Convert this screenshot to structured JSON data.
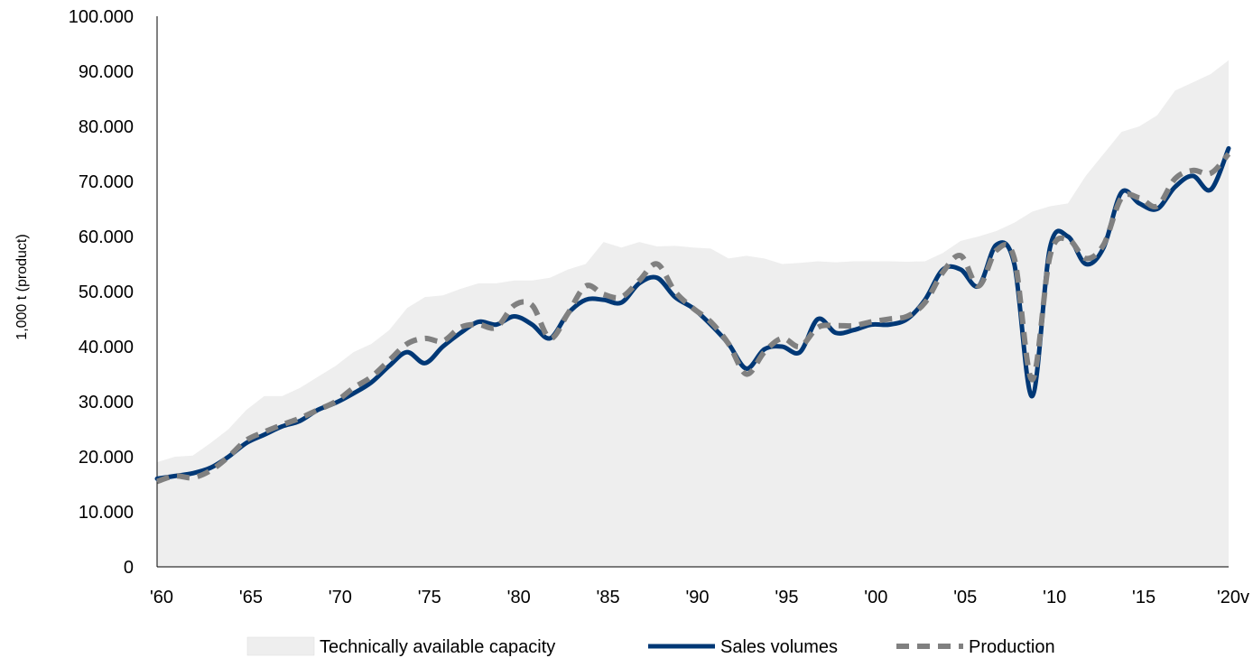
{
  "chart_data": {
    "type": "line",
    "title": "",
    "xlabel": "",
    "ylabel": "1,000 t (product)",
    "ylim": [
      0,
      100000
    ],
    "y_ticks": [
      {
        "value": 0,
        "label": "0"
      },
      {
        "value": 10000,
        "label": "10.000"
      },
      {
        "value": 20000,
        "label": "20.000"
      },
      {
        "value": 30000,
        "label": "30.000"
      },
      {
        "value": 40000,
        "label": "40.000"
      },
      {
        "value": 50000,
        "label": "50.000"
      },
      {
        "value": 60000,
        "label": "60.000"
      },
      {
        "value": 70000,
        "label": "70.000"
      },
      {
        "value": 80000,
        "label": "80.000"
      },
      {
        "value": 90000,
        "label": "90.000"
      },
      {
        "value": 100000,
        "label": "100.000"
      }
    ],
    "xlim": [
      1960,
      2020
    ],
    "x_ticks": [
      {
        "value": 1960,
        "label": "'60"
      },
      {
        "value": 1965,
        "label": "'65"
      },
      {
        "value": 1970,
        "label": "'70"
      },
      {
        "value": 1975,
        "label": "'75"
      },
      {
        "value": 1980,
        "label": "'80"
      },
      {
        "value": 1985,
        "label": "'85"
      },
      {
        "value": 1990,
        "label": "'90"
      },
      {
        "value": 1995,
        "label": "'95"
      },
      {
        "value": 2000,
        "label": "'00"
      },
      {
        "value": 2005,
        "label": "'05"
      },
      {
        "value": 2010,
        "label": "'10"
      },
      {
        "value": 2015,
        "label": "'15"
      },
      {
        "value": 2020,
        "label": "'20v"
      }
    ],
    "x": [
      1960,
      1961,
      1962,
      1963,
      1964,
      1965,
      1966,
      1967,
      1968,
      1969,
      1970,
      1971,
      1972,
      1973,
      1974,
      1975,
      1976,
      1977,
      1978,
      1979,
      1980,
      1981,
      1982,
      1983,
      1984,
      1985,
      1986,
      1987,
      1988,
      1989,
      1990,
      1991,
      1992,
      1993,
      1994,
      1995,
      1996,
      1997,
      1998,
      1999,
      2000,
      2001,
      2002,
      2003,
      2004,
      2005,
      2006,
      2007,
      2008,
      2009,
      2010,
      2011,
      2012,
      2013,
      2014,
      2015,
      2016,
      2017,
      2018,
      2019,
      2020
    ],
    "series": [
      {
        "name": "Technically available capacity",
        "style": "area",
        "color": "#eeeeee",
        "values": [
          19000,
          20000,
          20200,
          22500,
          25000,
          28500,
          31000,
          31000,
          32500,
          34500,
          36500,
          39000,
          40500,
          43000,
          47000,
          49000,
          49300,
          50500,
          51500,
          51500,
          52000,
          52000,
          52500,
          54000,
          55000,
          59000,
          58000,
          59000,
          58200,
          58300,
          58000,
          57800,
          56000,
          56500,
          56000,
          55000,
          55200,
          55500,
          55300,
          55500,
          55500,
          55500,
          55400,
          55500,
          57000,
          59200,
          60000,
          61000,
          62500,
          64500,
          65500,
          66000,
          71000,
          75000,
          79000,
          80000,
          82000,
          86500,
          88000,
          89500,
          92000
        ]
      },
      {
        "name": "Sales volumes",
        "style": "solid",
        "color": "#003876",
        "values": [
          16000,
          16500,
          17000,
          18000,
          20000,
          22500,
          24000,
          25500,
          26500,
          28500,
          29800,
          31500,
          33500,
          36500,
          39000,
          37000,
          40000,
          42500,
          44500,
          44000,
          45500,
          44000,
          41500,
          46000,
          48500,
          48500,
          48000,
          51500,
          52500,
          49000,
          47000,
          44000,
          40500,
          36000,
          39500,
          40000,
          39000,
          45000,
          42500,
          43000,
          44000,
          44000,
          45000,
          48500,
          54000,
          54000,
          51000,
          58500,
          55000,
          31000,
          58000,
          60000,
          55000,
          58000,
          68000,
          66000,
          65000,
          69000,
          71000,
          68500,
          76000
        ]
      },
      {
        "name": "Production",
        "style": "dashed",
        "color": "#808080",
        "values": [
          15500,
          16500,
          16200,
          17500,
          20000,
          23000,
          24500,
          25800,
          27000,
          28500,
          30000,
          32500,
          34500,
          37500,
          40500,
          41500,
          41000,
          43500,
          44000,
          43500,
          47500,
          47500,
          41500,
          46000,
          51000,
          49500,
          49000,
          52000,
          55000,
          50000,
          47000,
          44500,
          40500,
          35000,
          39000,
          41500,
          40000,
          43500,
          43800,
          43800,
          44500,
          45000,
          45500,
          48000,
          53500,
          56500,
          51000,
          57500,
          56000,
          34000,
          56500,
          59500,
          56000,
          58500,
          67000,
          67000,
          65500,
          70500,
          72000,
          71500,
          75000
        ]
      }
    ],
    "legend": {
      "position": "bottom",
      "items": [
        "Technically available capacity",
        "Sales volumes",
        "Production"
      ]
    },
    "grid": false
  }
}
